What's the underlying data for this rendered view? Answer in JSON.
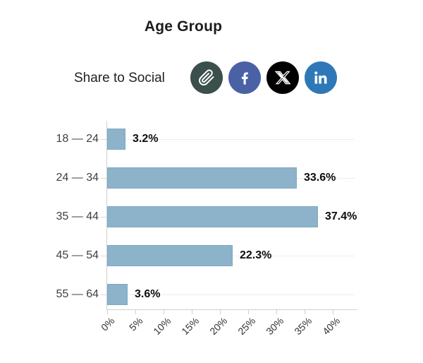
{
  "title": "Age Group",
  "share": {
    "label": "Share to Social",
    "buttons": [
      {
        "name": "copy-link",
        "icon": "paperclip-icon",
        "color": "#3b4f4c"
      },
      {
        "name": "facebook",
        "icon": "facebook-icon",
        "color": "#4b61a6"
      },
      {
        "name": "x-twitter",
        "icon": "x-icon",
        "color": "#000000"
      },
      {
        "name": "linkedin",
        "icon": "linkedin-icon",
        "color": "#2e78b7"
      }
    ]
  },
  "chart_data": {
    "type": "bar",
    "orientation": "horizontal",
    "title": "Age Group",
    "categories": [
      "18 — 24",
      "24 — 34",
      "35 — 44",
      "45 — 54",
      "55 — 64"
    ],
    "values": [
      3.2,
      33.6,
      37.4,
      22.3,
      3.6
    ],
    "value_labels": [
      "3.2%",
      "33.6%",
      "37.4%",
      "22.3%",
      "3.6%"
    ],
    "x_tick_labels": [
      "0%",
      "5%",
      "10%",
      "15%",
      "20%",
      "25%",
      "30%",
      "35%",
      "40%"
    ],
    "xlim": [
      0,
      44
    ],
    "xlabel": "",
    "ylabel": "",
    "grid": "horizontal row gridlines, light gray",
    "legend": "none",
    "bar_color": "#8cb3c9",
    "value_label_style": "bold, right of bar end"
  }
}
